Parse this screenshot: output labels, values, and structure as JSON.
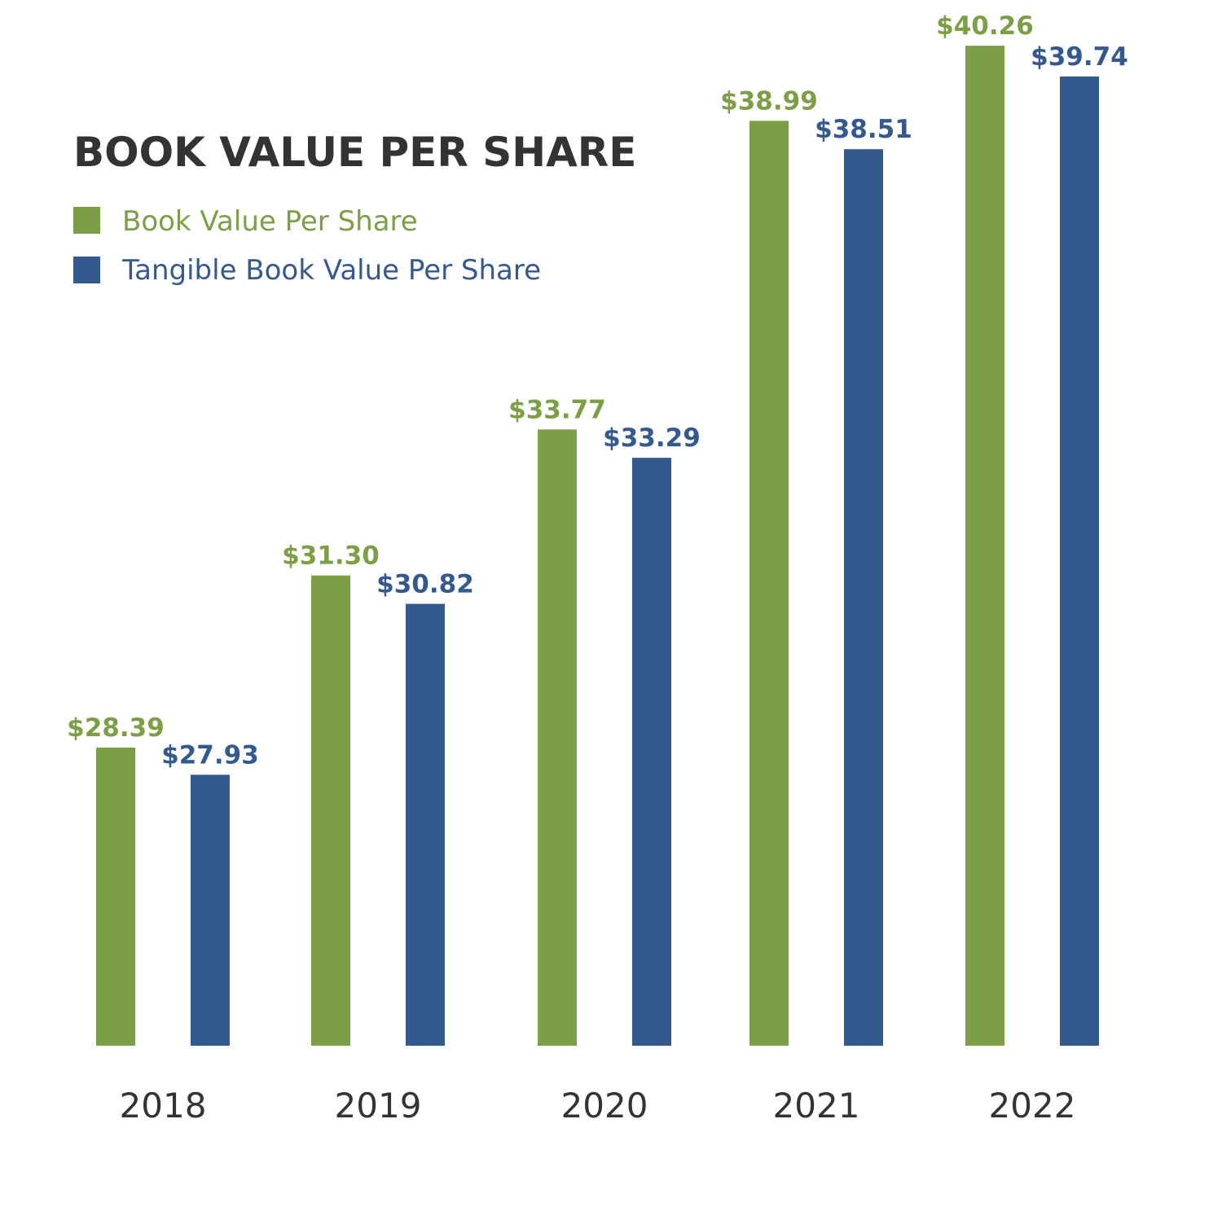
{
  "chart_data": {
    "type": "bar",
    "title": "BOOK VALUE PER SHARE",
    "categories": [
      "2018",
      "2019",
      "2020",
      "2021",
      "2022"
    ],
    "series": [
      {
        "name": "Book Value Per Share",
        "color": "#7c9e44",
        "values": [
          28.39,
          31.3,
          33.77,
          38.99,
          40.26
        ],
        "labels": [
          "$28.39",
          "$31.30",
          "$33.77",
          "$38.99",
          "$40.26"
        ]
      },
      {
        "name": "Tangible Book Value Per Share",
        "color": "#33598e",
        "values": [
          27.93,
          30.82,
          33.29,
          38.51,
          39.74
        ],
        "labels": [
          "$27.93",
          "$30.82",
          "$33.29",
          "$38.51",
          "$39.74"
        ]
      }
    ],
    "legend": "top-left",
    "grid": false
  }
}
